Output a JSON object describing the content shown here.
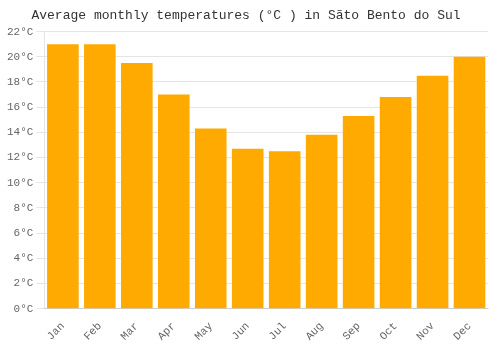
{
  "chart_data": {
    "type": "bar",
    "title": "Average monthly temperatures (°C ) in Sãto Bento do Sul",
    "categories": [
      "Jan",
      "Feb",
      "Mar",
      "Apr",
      "May",
      "Jun",
      "Jul",
      "Aug",
      "Sep",
      "Oct",
      "Nov",
      "Dec"
    ],
    "values": [
      21.0,
      21.0,
      19.5,
      17.0,
      14.3,
      12.7,
      12.5,
      13.8,
      15.3,
      16.8,
      18.5,
      20.0
    ],
    "color": "#FFAA00",
    "ylim": [
      0,
      22
    ],
    "yticks": [
      {
        "value": 0,
        "label": "0°C"
      },
      {
        "value": 2,
        "label": "2°C"
      },
      {
        "value": 4,
        "label": "4°C"
      },
      {
        "value": 6,
        "label": "6°C"
      },
      {
        "value": 8,
        "label": "8°C"
      },
      {
        "value": 10,
        "label": "10°C"
      },
      {
        "value": 12,
        "label": "12°C"
      },
      {
        "value": 14,
        "label": "14°C"
      },
      {
        "value": 16,
        "label": "16°C"
      },
      {
        "value": 18,
        "label": "18°C"
      },
      {
        "value": 20,
        "label": "20°C"
      },
      {
        "value": 22,
        "label": "22°C"
      }
    ],
    "grid": true
  }
}
